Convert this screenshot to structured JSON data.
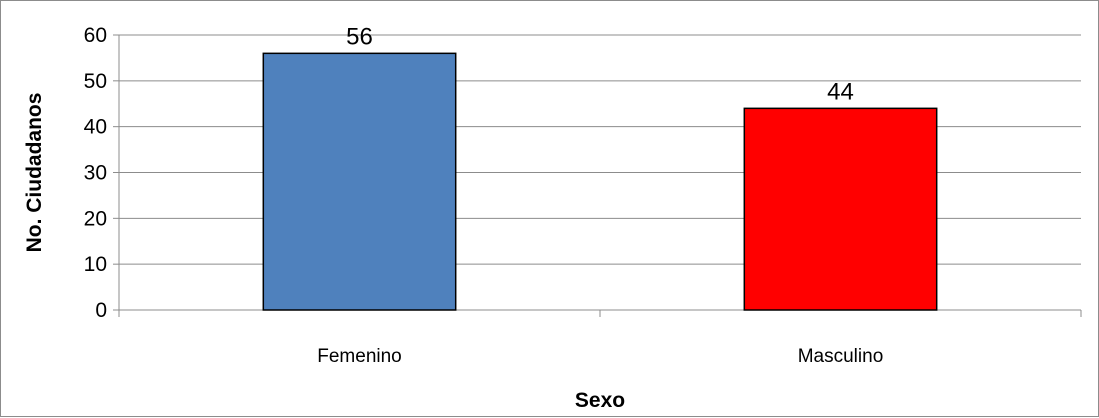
{
  "chart_data": {
    "type": "bar",
    "categories": [
      "Femenino",
      "Masculino"
    ],
    "values": [
      56,
      44
    ],
    "title": "",
    "xlabel": "Sexo",
    "ylabel": "No. Ciudadanos",
    "ylim": [
      0,
      60
    ],
    "yticks": [
      0,
      10,
      20,
      30,
      40,
      50,
      60
    ],
    "grid": true,
    "legend": "none",
    "bar_colors": [
      "#4f81bd",
      "#ff0000"
    ],
    "data_labels": [
      "56",
      "44"
    ]
  }
}
